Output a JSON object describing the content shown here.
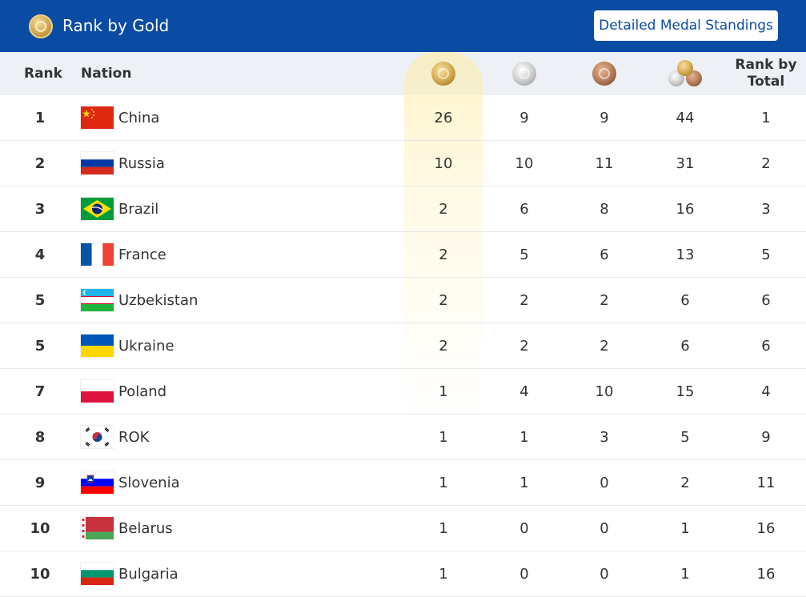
{
  "header_bar": {
    "title": "Rank by Gold",
    "button_label": "Detailed Medal Standings"
  },
  "columns": {
    "rank": "Rank",
    "nation": "Nation",
    "rank_by_total": "Rank by Total",
    "gold_icon": "gold-medal-icon",
    "silver_icon": "silver-medal-icon",
    "bronze_icon": "bronze-medal-icon",
    "total_icon": "total-medals-icon"
  },
  "colors": {
    "header_blue": "#0a4ba3",
    "header_row_bg": "#edf0f4",
    "gold_highlight": "#fff4c8"
  },
  "rows": [
    {
      "rank": "1",
      "nation": "China",
      "flag": "cn",
      "gold": "26",
      "silver": "9",
      "bronze": "9",
      "total": "44",
      "rank_by_total": "1"
    },
    {
      "rank": "2",
      "nation": "Russia",
      "flag": "ru",
      "gold": "10",
      "silver": "10",
      "bronze": "11",
      "total": "31",
      "rank_by_total": "2"
    },
    {
      "rank": "3",
      "nation": "Brazil",
      "flag": "br",
      "gold": "2",
      "silver": "6",
      "bronze": "8",
      "total": "16",
      "rank_by_total": "3"
    },
    {
      "rank": "4",
      "nation": "France",
      "flag": "fr",
      "gold": "2",
      "silver": "5",
      "bronze": "6",
      "total": "13",
      "rank_by_total": "5"
    },
    {
      "rank": "5",
      "nation": "Uzbekistan",
      "flag": "uz",
      "gold": "2",
      "silver": "2",
      "bronze": "2",
      "total": "6",
      "rank_by_total": "6"
    },
    {
      "rank": "5",
      "nation": "Ukraine",
      "flag": "ua",
      "gold": "2",
      "silver": "2",
      "bronze": "2",
      "total": "6",
      "rank_by_total": "6"
    },
    {
      "rank": "7",
      "nation": "Poland",
      "flag": "pl",
      "gold": "1",
      "silver": "4",
      "bronze": "10",
      "total": "15",
      "rank_by_total": "4"
    },
    {
      "rank": "8",
      "nation": "ROK",
      "flag": "kr",
      "gold": "1",
      "silver": "1",
      "bronze": "3",
      "total": "5",
      "rank_by_total": "9"
    },
    {
      "rank": "9",
      "nation": "Slovenia",
      "flag": "si",
      "gold": "1",
      "silver": "1",
      "bronze": "0",
      "total": "2",
      "rank_by_total": "11"
    },
    {
      "rank": "10",
      "nation": "Belarus",
      "flag": "by",
      "gold": "1",
      "silver": "0",
      "bronze": "0",
      "total": "1",
      "rank_by_total": "16"
    },
    {
      "rank": "10",
      "nation": "Bulgaria",
      "flag": "bg",
      "gold": "1",
      "silver": "0",
      "bronze": "0",
      "total": "1",
      "rank_by_total": "16"
    }
  ]
}
